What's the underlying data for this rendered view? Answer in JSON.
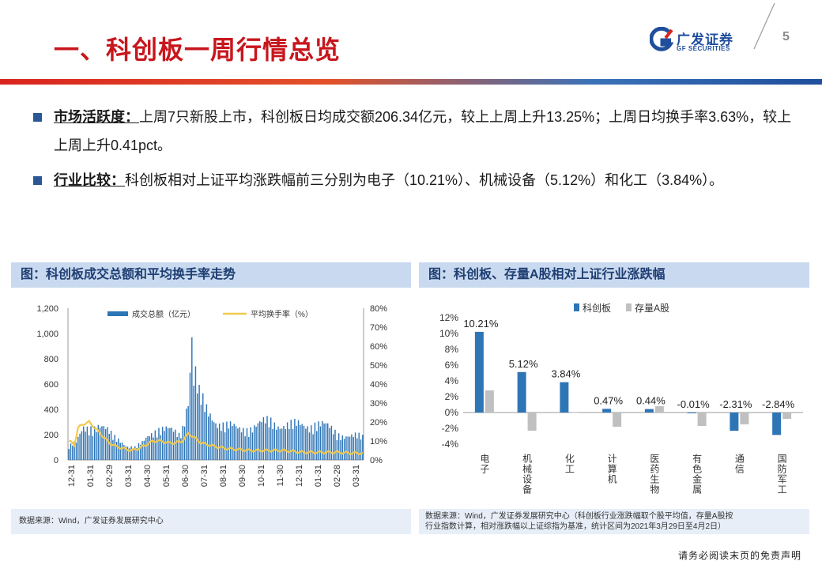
{
  "header": {
    "title": "一、科创板一周行情总览",
    "logo_cn": "广发证券",
    "logo_en": "GF SECURITIES",
    "page_number": "5"
  },
  "bullets": [
    {
      "label": "市场活跃度：",
      "text": "上周7只新股上市，科创板日均成交额206.34亿元，较上上周上升13.25%；上周日均换手率3.63%，较上上周上升0.41pct。"
    },
    {
      "label": "行业比较：",
      "text": "科创板相对上证平均涨跌幅前三分别为电子（10.21%）、机械设备（5.12%）和化工（3.84%）。"
    }
  ],
  "left_panel": {
    "heading": "图：科创板成交总额和平均换手率走势",
    "source": "数据来源：Wind，广发证券发展研究中心"
  },
  "right_panel": {
    "heading": "图：科创板、存量A股相对上证行业涨跌幅",
    "source_line1": "数据来源：Wind，广发证券发展研究中心（科创板行业涨跌幅取个股平均值，存量A股按",
    "source_line2": "行业指数计算，相对涨跌幅以上证综指为基准，统计区间为2021年3月29日至4月2日）"
  },
  "disclaimer": "请务必阅读末页的免责声明",
  "colors": {
    "accent_red": "#c8161d",
    "brand_blue": "#1f4e9c",
    "bar_blue": "#2e75b6",
    "bar_gray": "#c0c0c0",
    "line_yellow": "#f2c94c"
  },
  "chart_data": [
    {
      "type": "bar+line",
      "legend": [
        "成交总额（亿元）",
        "平均换手率（%）"
      ],
      "x_ticks": [
        "12-31",
        "01-31",
        "02-29",
        "03-31",
        "04-30",
        "05-31",
        "06-30",
        "07-31",
        "08-31",
        "09-30",
        "10-31",
        "11-30",
        "12-31",
        "01-31",
        "02-28",
        "03-31"
      ],
      "y_left": {
        "ticks": [
          "0",
          "200",
          "400",
          "600",
          "800",
          "1,000",
          "1,200"
        ],
        "range": [
          0,
          1200
        ]
      },
      "y_right": {
        "ticks": [
          "0%",
          "10%",
          "20%",
          "30%",
          "40%",
          "50%",
          "60%",
          "70%",
          "80%"
        ],
        "range": [
          0,
          80
        ]
      },
      "turnover_trend": [
        [
          0,
          120
        ],
        [
          4,
          140
        ],
        [
          8,
          270
        ],
        [
          12,
          300
        ],
        [
          16,
          300
        ],
        [
          20,
          250
        ],
        [
          24,
          200
        ],
        [
          28,
          180
        ],
        [
          32,
          120
        ],
        [
          36,
          100
        ],
        [
          40,
          140
        ],
        [
          44,
          230
        ],
        [
          48,
          280
        ],
        [
          52,
          260
        ],
        [
          56,
          240
        ],
        [
          60,
          220
        ],
        [
          62,
          300
        ],
        [
          65,
          560
        ],
        [
          67,
          700
        ],
        [
          69,
          620
        ],
        [
          72,
          500
        ],
        [
          75,
          420
        ],
        [
          80,
          350
        ],
        [
          86,
          290
        ],
        [
          92,
          260
        ],
        [
          98,
          290
        ],
        [
          104,
          300
        ],
        [
          110,
          330
        ],
        [
          116,
          310
        ],
        [
          122,
          290
        ],
        [
          128,
          300
        ],
        [
          134,
          320
        ],
        [
          140,
          280
        ],
        [
          146,
          240
        ],
        [
          150,
          220
        ],
        [
          154,
          200
        ],
        [
          160,
          190
        ]
      ],
      "rate_trend": [
        [
          0,
          10
        ],
        [
          3,
          8
        ],
        [
          5,
          17
        ],
        [
          8,
          19
        ],
        [
          11,
          20
        ],
        [
          14,
          17
        ],
        [
          18,
          13
        ],
        [
          22,
          9
        ],
        [
          26,
          7
        ],
        [
          30,
          6
        ],
        [
          34,
          5
        ],
        [
          38,
          6
        ],
        [
          42,
          8
        ],
        [
          46,
          10
        ],
        [
          50,
          10
        ],
        [
          54,
          9
        ],
        [
          58,
          9
        ],
        [
          62,
          10
        ],
        [
          65,
          14
        ],
        [
          68,
          12
        ],
        [
          72,
          9
        ],
        [
          76,
          8
        ],
        [
          80,
          7
        ],
        [
          86,
          6
        ],
        [
          92,
          5.5
        ],
        [
          98,
          5
        ],
        [
          104,
          5
        ],
        [
          110,
          5
        ],
        [
          116,
          5
        ],
        [
          122,
          4.5
        ],
        [
          128,
          4
        ],
        [
          134,
          4
        ],
        [
          140,
          4
        ],
        [
          146,
          4
        ],
        [
          150,
          3.8
        ],
        [
          154,
          3.6
        ],
        [
          160,
          3.6
        ]
      ],
      "spike": {
        "x": 67,
        "value": 970
      }
    },
    {
      "type": "bar",
      "legend": [
        "科创板",
        "存量A股"
      ],
      "categories": [
        "电子",
        "机械设备",
        "化工",
        "计算机",
        "医药生物",
        "有色金属",
        "通信",
        "国防军工"
      ],
      "series": [
        {
          "name": "科创板",
          "values": [
            10.21,
            5.12,
            3.84,
            0.47,
            0.44,
            -0.01,
            -2.31,
            -2.84
          ]
        },
        {
          "name": "存量A股",
          "values": [
            2.8,
            -2.3,
            0.0,
            -1.8,
            0.8,
            -1.7,
            -1.5,
            -0.8
          ]
        }
      ],
      "data_labels": [
        "10.21%",
        "5.12%",
        "3.84%",
        "0.47%",
        "0.44%",
        "-0.01%",
        "-2.31%",
        "-2.84%"
      ],
      "y_ticks": [
        "-4%",
        "-2%",
        "0%",
        "2%",
        "4%",
        "6%",
        "8%",
        "10%",
        "12%"
      ],
      "ylim": [
        -4,
        12
      ]
    }
  ]
}
